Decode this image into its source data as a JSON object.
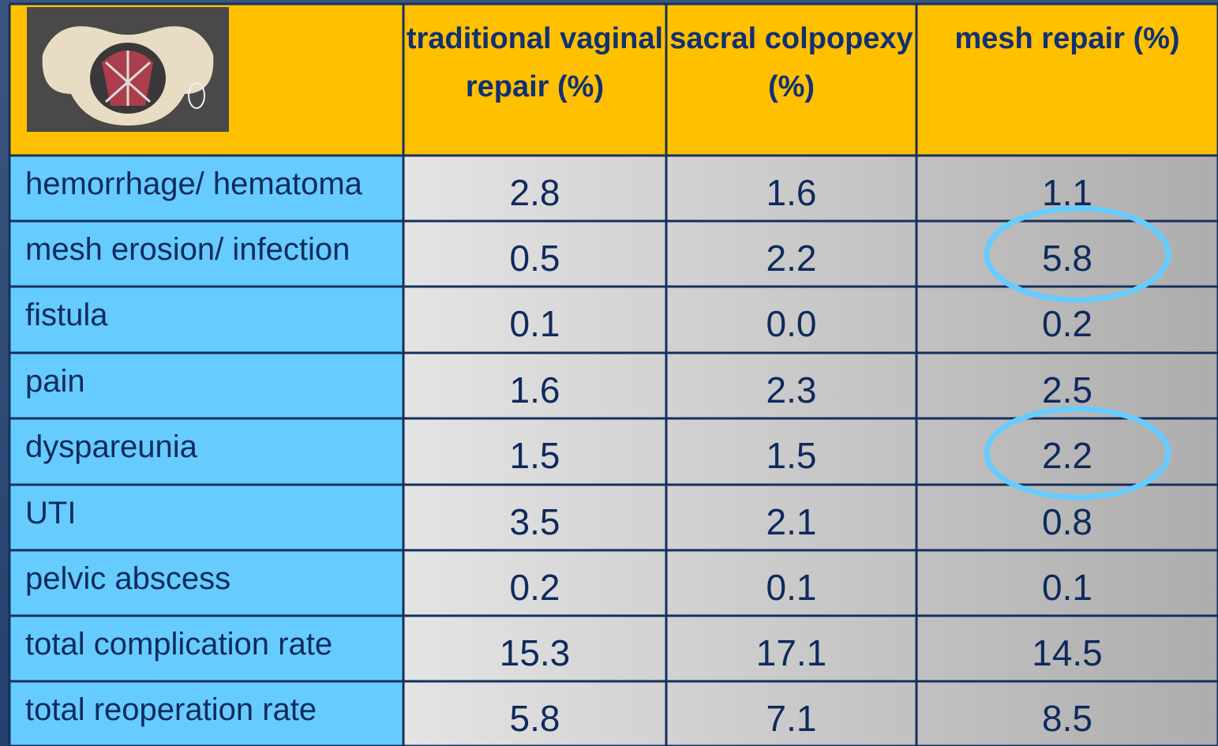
{
  "table": {
    "header": [
      "traditional vaginal repair (%)",
      "sacral colpopexy (%)",
      "mesh repair (%)"
    ],
    "rows": [
      [
        "hemorrhage/ hematoma",
        "2.8",
        "1.6",
        "1.1"
      ],
      [
        "mesh erosion/ infection",
        "0.5",
        "2.2",
        "5.8"
      ],
      [
        "fistula",
        "0.1",
        "0.0",
        "0.2"
      ],
      [
        "pain",
        "1.6",
        "2.3",
        "2.5"
      ],
      [
        "dyspareunia",
        "1.5",
        "1.5",
        "2.2"
      ],
      [
        "UTI",
        "3.5",
        "2.1",
        "0.8"
      ],
      [
        "pelvic abscess",
        "0.2",
        "0.1",
        "0.1"
      ],
      [
        "total complication rate",
        "15.3",
        "17.1",
        "14.5"
      ],
      [
        "total reoperation rate",
        "5.8",
        "7.1",
        "8.5"
      ]
    ]
  }
}
